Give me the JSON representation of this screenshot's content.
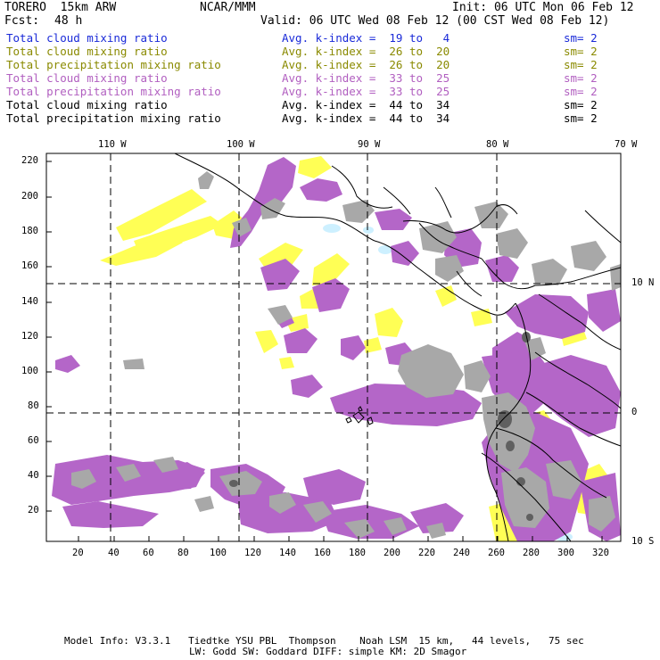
{
  "header": {
    "model": "TORERO  15km ARW",
    "org": "NCAR/MMM",
    "init": "Init: 06 UTC Mon 06 Feb 12",
    "fcst_label": "Fcst:",
    "fcst_value": "48 h",
    "valid": "Valid: 06 UTC Wed 08 Feb 12 (00 CST Wed 08 Feb 12)"
  },
  "legend": [
    {
      "field": "Total cloud mixing ratio",
      "stat": "Avg. k-index =  19 to   4",
      "sm": "sm= 2",
      "color": "#1a2ad8"
    },
    {
      "field": "Total cloud mixing ratio",
      "stat": "Avg. k-index =  26 to  20",
      "sm": "sm= 2",
      "color": "#8a8a00"
    },
    {
      "field": "Total precipitation mixing ratio",
      "stat": "Avg. k-index =  26 to  20",
      "sm": "sm= 2",
      "color": "#8a8a00"
    },
    {
      "field": "Total cloud mixing ratio",
      "stat": "Avg. k-index =  33 to  25",
      "sm": "sm= 2",
      "color": "#b15fc0"
    },
    {
      "field": "Total precipitation mixing ratio",
      "stat": "Avg. k-index =  33 to  25",
      "sm": "sm= 2",
      "color": "#b15fc0"
    },
    {
      "field": "Total cloud mixing ratio",
      "stat": "Avg. k-index =  44 to  34",
      "sm": "sm= 2",
      "color": "#000000"
    },
    {
      "field": "Total precipitation mixing ratio",
      "stat": "Avg. k-index =  44 to  34",
      "sm": "sm= 2",
      "color": "#000000"
    }
  ],
  "axes": {
    "top_lon_labels": [
      "110 W",
      "100 W",
      "90 W",
      "80 W",
      "70 W"
    ],
    "right_lat_labels": [
      "10 N",
      "0",
      "10 S"
    ],
    "y_ticks": [
      "220",
      "200",
      "180",
      "160",
      "140",
      "120",
      "100",
      "80",
      "60",
      "40",
      "20"
    ],
    "x_ticks": [
      "20",
      "40",
      "60",
      "80",
      "100",
      "120",
      "140",
      "160",
      "180",
      "200",
      "220",
      "240",
      "260",
      "280",
      "300",
      "320"
    ]
  },
  "colors": {
    "fill_yellow": "#ffff55",
    "fill_purple": "#b466c8",
    "fill_gray": "#a8a8a8",
    "fill_darkgray": "#606060",
    "fill_lightblue": "#cdf0ff",
    "coast": "#000000"
  },
  "footer": {
    "line1": "Model Info: V3.3.1   Tiedtke YSU PBL  Thompson    Noah LSM  15 km,   44 levels,   75 sec",
    "line2": "LW: Godd SW: Goddard DIFF: simple KM: 2D Smagor"
  }
}
